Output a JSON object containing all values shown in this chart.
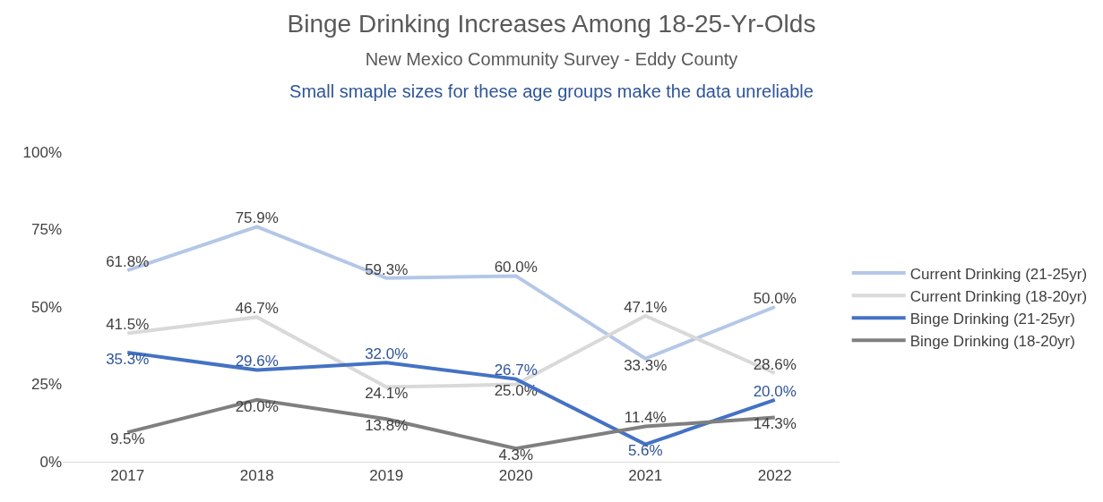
{
  "chart_data": {
    "type": "line",
    "title": "Binge Drinking Increases Among 18-25-Yr-Olds",
    "subtitle": "New Mexico Community Survey - Eddy County",
    "annotations": [
      "Small smaple sizes for these age groups make the data unreliable"
    ],
    "categories": [
      "2017",
      "2018",
      "2019",
      "2020",
      "2021",
      "2022"
    ],
    "series": [
      {
        "name": "Current Drinking (21-25yr)",
        "color": "#b4c7e7",
        "values": [
          61.8,
          75.9,
          59.3,
          60.0,
          33.3,
          50.0
        ],
        "value_labels": [
          "61.8%",
          "75.9%",
          "59.3%",
          "60.0%",
          "33.3%",
          "50.0%"
        ]
      },
      {
        "name": "Current Drinking (18-20yr)",
        "color": "#d9d9d9",
        "values": [
          41.5,
          46.7,
          24.1,
          25.0,
          47.1,
          28.6
        ],
        "value_labels": [
          "41.5%",
          "46.7%",
          "24.1%",
          "25.0%",
          "47.1%",
          "28.6%"
        ]
      },
      {
        "name": "Binge Drinking (21-25yr)",
        "color": "#4472c4",
        "values": [
          35.3,
          29.6,
          32.0,
          26.7,
          5.6,
          20.0
        ],
        "value_labels": [
          "35.3%",
          "29.6%",
          "32.0%",
          "26.7%",
          "5.6%",
          "20.0%"
        ]
      },
      {
        "name": "Binge Drinking (18-20yr)",
        "color": "#7f7f7f",
        "values": [
          9.5,
          20.0,
          13.8,
          4.3,
          11.4,
          14.3
        ],
        "value_labels": [
          "9.5%",
          "20.0%",
          "13.8%",
          "4.3%",
          "11.4%",
          "14.3%"
        ]
      }
    ],
    "ylim": [
      0,
      100
    ],
    "yticks": [
      {
        "value": 0,
        "label": "0%"
      },
      {
        "value": 25,
        "label": "25%"
      },
      {
        "value": 50,
        "label": "50%"
      },
      {
        "value": 75,
        "label": "75%"
      },
      {
        "value": 100,
        "label": "100%"
      }
    ],
    "legend": "right",
    "marker": "none",
    "line_style": "solid"
  }
}
